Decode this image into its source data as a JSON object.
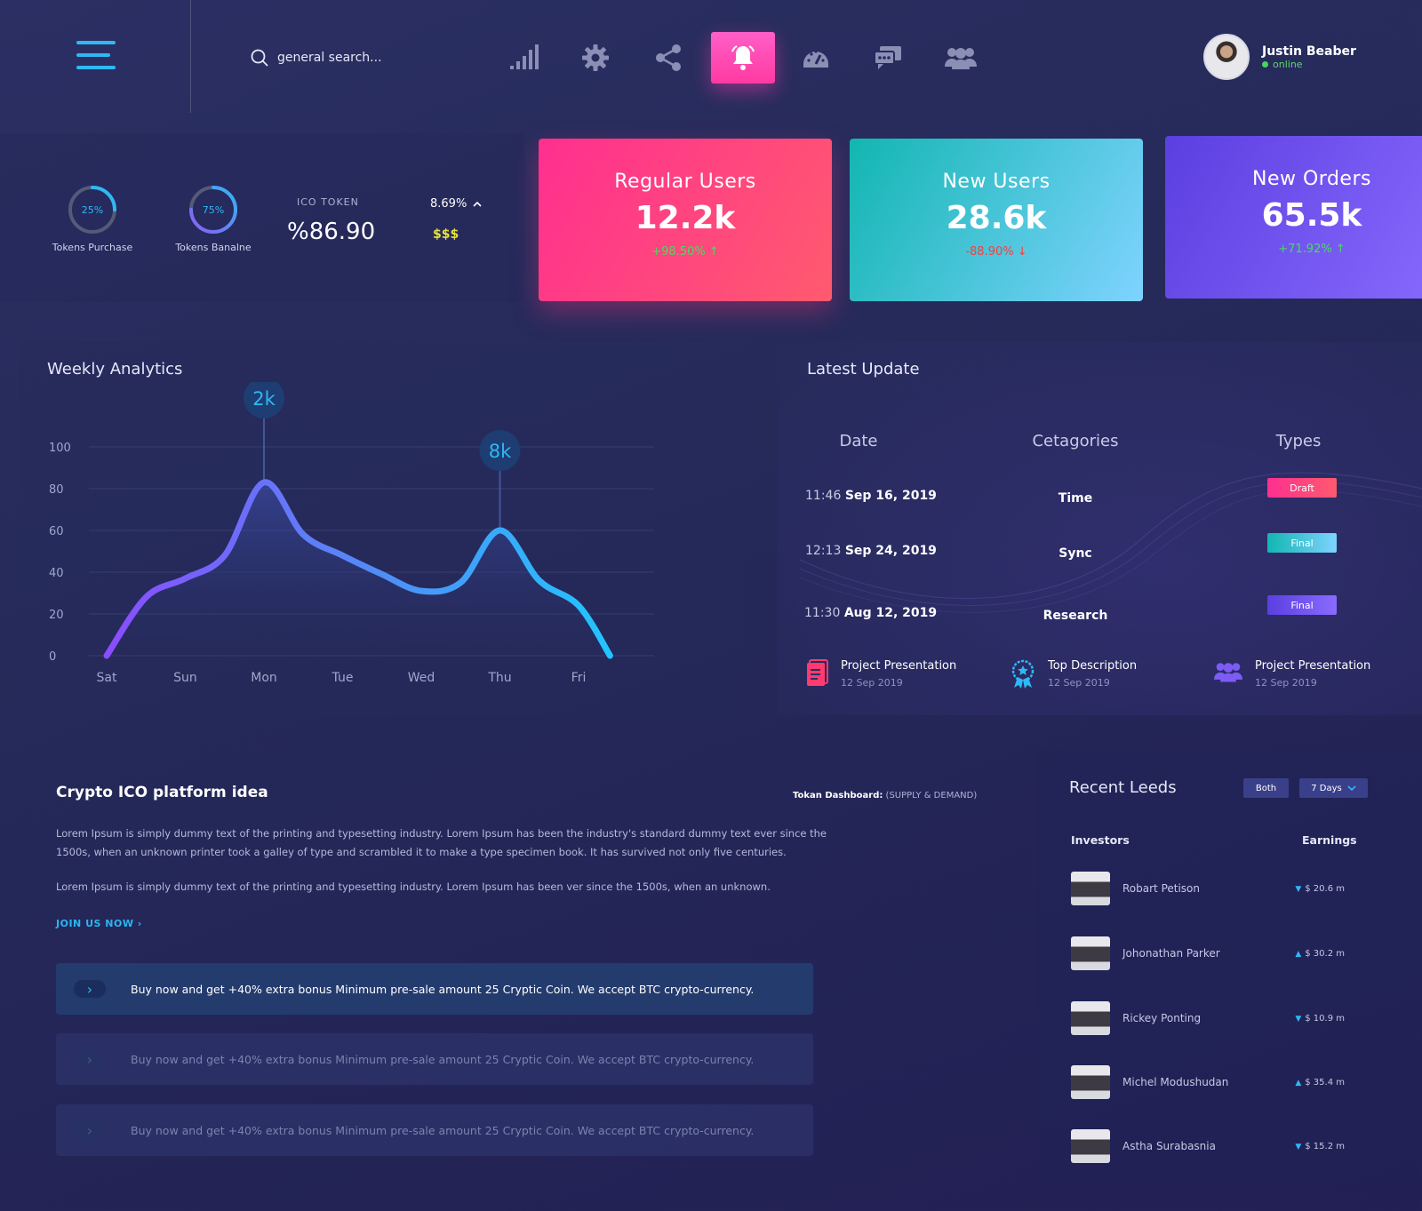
{
  "header": {
    "search_placeholder": "general search...",
    "nav_icons": [
      "signal-icon",
      "gear-icon",
      "share-icon",
      "bell-icon",
      "speedometer-icon",
      "chat-icon",
      "users-icon"
    ],
    "active_icon": "bell-icon",
    "user": {
      "name": "Justin Beaber",
      "status": "online"
    }
  },
  "tokens": {
    "purchase": {
      "percent": 25,
      "percent_label": "25%",
      "label": "Tokens Purchase"
    },
    "balance": {
      "percent": 75,
      "percent_label": "75%",
      "label": "Tokens Banalne"
    },
    "ico_label": "ICO TOKEN",
    "ico_value": "%86.90",
    "change": "8.69%",
    "currency": "$$$"
  },
  "cards": [
    {
      "title": "Regular Users",
      "value": "12.2k",
      "change": "+98.50%",
      "trend": "up"
    },
    {
      "title": "New Users",
      "value": "28.6k",
      "change": "-88.90%",
      "trend": "down"
    },
    {
      "title": "New Orders",
      "value": "65.5k",
      "change": "+71.92%",
      "trend": "up"
    }
  ],
  "analytics": {
    "title": "Weekly Analytics",
    "markers": [
      {
        "label": "2k",
        "day": "Mon"
      },
      {
        "label": "8k",
        "day": "Thu"
      }
    ]
  },
  "chart_data": {
    "type": "area",
    "categories": [
      "Sat",
      "Sun",
      "Mon",
      "Tue",
      "Wed",
      "Thu",
      "Fri"
    ],
    "highlighted_category": "Sat",
    "x": [
      0,
      0.5,
      1,
      1.5,
      2,
      2.5,
      3,
      3.5,
      4,
      4.5,
      5,
      5.5,
      6,
      6.4
    ],
    "values": [
      0,
      28,
      37,
      48,
      83,
      58,
      48,
      39,
      31,
      35,
      60,
      36,
      24,
      0
    ],
    "yticks": [
      0,
      20,
      40,
      60,
      80,
      100
    ],
    "ylim": [
      0,
      100
    ],
    "grid": true,
    "legend": "none"
  },
  "latest": {
    "title": "Latest Update",
    "headers": [
      "Date",
      "Cetagories",
      "Types"
    ],
    "rows": [
      {
        "time": "11:46",
        "date": "Sep 16, 2019",
        "category": "Time",
        "type": "Draft"
      },
      {
        "time": "12:13",
        "date": "Sep 24, 2019",
        "category": "Sync",
        "type": "Final"
      },
      {
        "time": "11:30",
        "date": "Aug 12, 2019",
        "category": "Research",
        "type": "Final"
      }
    ],
    "items": [
      {
        "title": "Project Presentation",
        "date": "12 Sep 2019",
        "icon": "document-icon"
      },
      {
        "title": "Top Description",
        "date": "12 Sep 2019",
        "icon": "award-icon"
      },
      {
        "title": "Project Presentation",
        "date": "12 Sep 2019",
        "icon": "users-icon"
      }
    ]
  },
  "crypto": {
    "title": "Crypto ICO platform idea",
    "dashboard_label": "Tokan Dashboard:",
    "dashboard_sub": "(SUPPLY & DEMAND)",
    "para1": "Lorem Ipsum is simply dummy text of the printing and typesetting industry. Lorem Ipsum has been the industry's standard dummy text ever since the 1500s, when an unknown printer took a galley of type and scrambled it to make a type specimen book. It has survived not only five centuries.",
    "para2": "Lorem Ipsum is simply dummy text of the printing and typesetting industry. Lorem Ipsum has been ver since the 1500s, when an unknown.",
    "join": "JOIN US NOW",
    "promos": [
      "Buy now and get +40% extra bonus Minimum pre-sale amount 25 Cryptic Coin. We accept BTC crypto-currency.",
      "Buy now and get +40% extra bonus Minimum pre-sale amount 25 Cryptic Coin. We accept BTC crypto-currency.",
      "Buy now and get +40% extra bonus Minimum pre-sale amount 25 Cryptic Coin. We accept BTC crypto-currency."
    ]
  },
  "leeds": {
    "title": "Recent Leeds",
    "filter_both": "Both",
    "filter_days": "7 Days",
    "col_investors": "Investors",
    "col_earnings": "Earnings",
    "rows": [
      {
        "name": "Robart Petison",
        "earning": "$ 20.6  m",
        "trend": "down"
      },
      {
        "name": "Johonathan Parker",
        "earning": "$ 30.2  m",
        "trend": "up"
      },
      {
        "name": "Rickey Ponting",
        "earning": "$ 10.9  m",
        "trend": "down"
      },
      {
        "name": "Michel Modushudan",
        "earning": "$ 35.4  m",
        "trend": "up"
      },
      {
        "name": "Astha Surabasnia",
        "earning": "$ 15.2  m",
        "trend": "down"
      }
    ]
  },
  "colors": {
    "accent": "#2fb8f5",
    "pink": "#ff3aa1",
    "teal": "#12b6b2",
    "purple": "#6b4ff0",
    "up": "#4cd964",
    "down": "#ff3b3b",
    "yellow": "#e5e13a"
  }
}
